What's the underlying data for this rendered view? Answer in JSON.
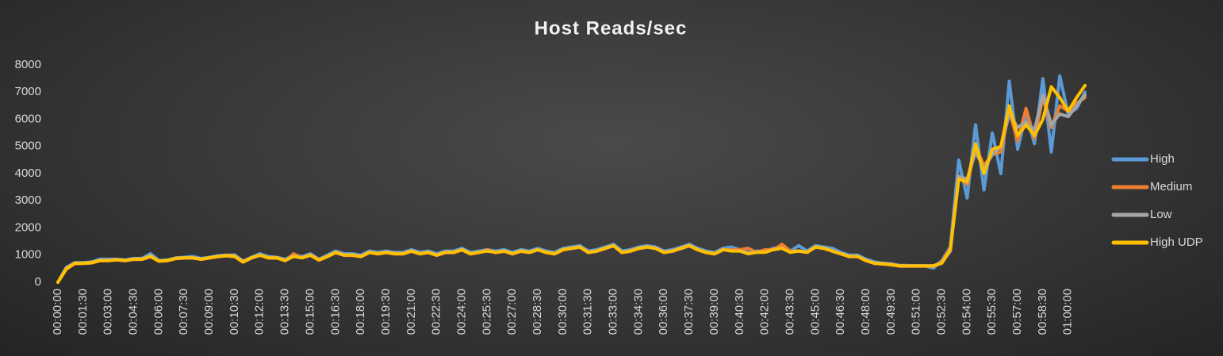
{
  "chart_data": {
    "type": "line",
    "title": "Host Reads/sec",
    "categories": [
      "00:00:00",
      null,
      null,
      "00:01:30",
      null,
      null,
      "00:03:00",
      null,
      null,
      "00:04:30",
      null,
      null,
      "00:06:00",
      null,
      null,
      "00:07:30",
      null,
      null,
      "00:09:00",
      null,
      null,
      "00:10:30",
      null,
      null,
      "00:12:00",
      null,
      null,
      "00:13:30",
      null,
      null,
      "00:15:00",
      null,
      null,
      "00:16:30",
      null,
      null,
      "00:18:00",
      null,
      null,
      "00:19:30",
      null,
      null,
      "00:21:00",
      null,
      null,
      "00:22:30",
      null,
      null,
      "00:24:00",
      null,
      null,
      "00:25:30",
      null,
      null,
      "00:27:00",
      null,
      null,
      "00:28:30",
      null,
      null,
      "00:30:00",
      null,
      null,
      "00:31:30",
      null,
      null,
      "00:33:00",
      null,
      null,
      "00:34:30",
      null,
      null,
      "00:36:00",
      null,
      null,
      "00:37:30",
      null,
      null,
      "00:39:00",
      null,
      null,
      "00:40:30",
      null,
      null,
      "00:42:00",
      null,
      null,
      "00:43:30",
      null,
      null,
      "00:45:00",
      null,
      null,
      "00:46:30",
      null,
      null,
      "00:48:00",
      null,
      null,
      "00:49:30",
      null,
      null,
      "00:51:00",
      null,
      null,
      "00:52:30",
      null,
      null,
      "00:54:00",
      null,
      null,
      "00:55:30",
      null,
      null,
      "00:57:00",
      null,
      null,
      "00:58:30",
      null,
      null,
      "01:00:00",
      null,
      null
    ],
    "series": [
      {
        "name": "High",
        "color": "#5b9bd5",
        "values": [
          0,
          550,
          720,
          720,
          750,
          850,
          850,
          850,
          820,
          880,
          880,
          1050,
          800,
          820,
          900,
          920,
          950,
          880,
          920,
          980,
          1000,
          1000,
          780,
          920,
          1050,
          950,
          920,
          850,
          1000,
          950,
          1050,
          850,
          1000,
          1150,
          1050,
          1050,
          1000,
          1150,
          1100,
          1150,
          1100,
          1100,
          1200,
          1100,
          1150,
          1050,
          1150,
          1150,
          1250,
          1100,
          1150,
          1200,
          1150,
          1200,
          1100,
          1200,
          1150,
          1250,
          1150,
          1100,
          1250,
          1300,
          1350,
          1150,
          1200,
          1300,
          1400,
          1150,
          1200,
          1300,
          1350,
          1300,
          1150,
          1200,
          1300,
          1400,
          1250,
          1150,
          1100,
          1250,
          1300,
          1200,
          1100,
          1150,
          1150,
          1250,
          1300,
          1150,
          1350,
          1150,
          1350,
          1300,
          1250,
          1100,
          1000,
          1000,
          850,
          750,
          700,
          680,
          620,
          620,
          600,
          600,
          520,
          800,
          1300,
          4500,
          3100,
          5800,
          3400,
          5500,
          4000,
          7400,
          4900,
          6200,
          5100,
          7500,
          4800,
          7600,
          6200,
          6400,
          7000
        ]
      },
      {
        "name": "Medium",
        "color": "#ed7d31",
        "values": [
          0,
          480,
          680,
          690,
          710,
          790,
          790,
          820,
          790,
          840,
          840,
          940,
          770,
          790,
          870,
          890,
          890,
          840,
          890,
          940,
          970,
          940,
          740,
          890,
          990,
          890,
          890,
          790,
          1050,
          900,
          990,
          810,
          940,
          1090,
          990,
          990,
          940,
          1090,
          1040,
          1090,
          1040,
          1040,
          1140,
          1040,
          1090,
          990,
          1090,
          1090,
          1190,
          1040,
          1090,
          1200,
          1090,
          1140,
          1040,
          1140,
          1090,
          1190,
          1090,
          1040,
          1190,
          1240,
          1290,
          1090,
          1140,
          1240,
          1340,
          1090,
          1140,
          1240,
          1290,
          1240,
          1090,
          1140,
          1240,
          1340,
          1190,
          1090,
          1040,
          1190,
          1200,
          1200,
          1250,
          1100,
          1200,
          1200,
          1400,
          1150,
          1150,
          1100,
          1290,
          1240,
          1140,
          1040,
          940,
          940,
          790,
          690,
          670,
          640,
          590,
          590,
          590,
          590,
          590,
          750,
          1250,
          3900,
          3600,
          5000,
          4300,
          4700,
          4800,
          6300,
          5200,
          6400,
          5300,
          6800,
          5700,
          6500,
          6300,
          6600,
          6800
        ]
      },
      {
        "name": "Low",
        "color": "#a5a5a5",
        "values": [
          0,
          520,
          710,
          710,
          730,
          810,
          810,
          840,
          810,
          860,
          860,
          980,
          790,
          810,
          890,
          910,
          910,
          860,
          910,
          960,
          990,
          1000,
          760,
          910,
          1010,
          910,
          910,
          810,
          960,
          910,
          1010,
          830,
          960,
          1110,
          1010,
          1010,
          960,
          1110,
          1060,
          1110,
          1060,
          1060,
          1160,
          1060,
          1110,
          1010,
          1110,
          1110,
          1210,
          1060,
          1110,
          1160,
          1110,
          1160,
          1060,
          1160,
          1110,
          1210,
          1110,
          1060,
          1210,
          1260,
          1310,
          1110,
          1160,
          1260,
          1360,
          1110,
          1160,
          1260,
          1310,
          1260,
          1110,
          1160,
          1260,
          1360,
          1210,
          1110,
          1060,
          1210,
          1160,
          1160,
          1060,
          1110,
          1110,
          1210,
          1260,
          1110,
          1160,
          1110,
          1310,
          1260,
          1160,
          1060,
          960,
          960,
          810,
          710,
          690,
          660,
          610,
          610,
          610,
          610,
          610,
          720,
          1150,
          3900,
          3800,
          4800,
          4200,
          4700,
          5000,
          6200,
          5700,
          5900,
          5600,
          6900,
          5800,
          6200,
          6100,
          6500,
          6900
        ]
      },
      {
        "name": "High UDP",
        "color": "#ffc000",
        "values": [
          0,
          500,
          700,
          700,
          720,
          800,
          800,
          830,
          800,
          850,
          850,
          950,
          780,
          800,
          880,
          900,
          900,
          850,
          900,
          950,
          980,
          950,
          750,
          900,
          1000,
          900,
          900,
          800,
          950,
          900,
          1000,
          820,
          950,
          1100,
          1000,
          1000,
          950,
          1100,
          1050,
          1100,
          1050,
          1050,
          1150,
          1050,
          1100,
          1000,
          1100,
          1100,
          1200,
          1050,
          1100,
          1150,
          1100,
          1150,
          1050,
          1150,
          1100,
          1200,
          1100,
          1050,
          1200,
          1250,
          1300,
          1100,
          1150,
          1250,
          1350,
          1100,
          1150,
          1250,
          1300,
          1250,
          1100,
          1150,
          1250,
          1350,
          1200,
          1100,
          1050,
          1200,
          1150,
          1150,
          1050,
          1100,
          1100,
          1200,
          1250,
          1100,
          1150,
          1100,
          1300,
          1250,
          1150,
          1050,
          950,
          950,
          800,
          700,
          680,
          650,
          600,
          600,
          600,
          600,
          600,
          700,
          1200,
          3800,
          3700,
          5100,
          4000,
          4900,
          5000,
          6500,
          5400,
          5800,
          5400,
          6000,
          7200,
          6800,
          6300,
          6800,
          7250
        ]
      }
    ],
    "ylim": [
      0,
      8000
    ],
    "yticks": [
      0,
      1000,
      2000,
      3000,
      4000,
      5000,
      6000,
      7000,
      8000
    ],
    "grid": false,
    "legend": "right"
  }
}
